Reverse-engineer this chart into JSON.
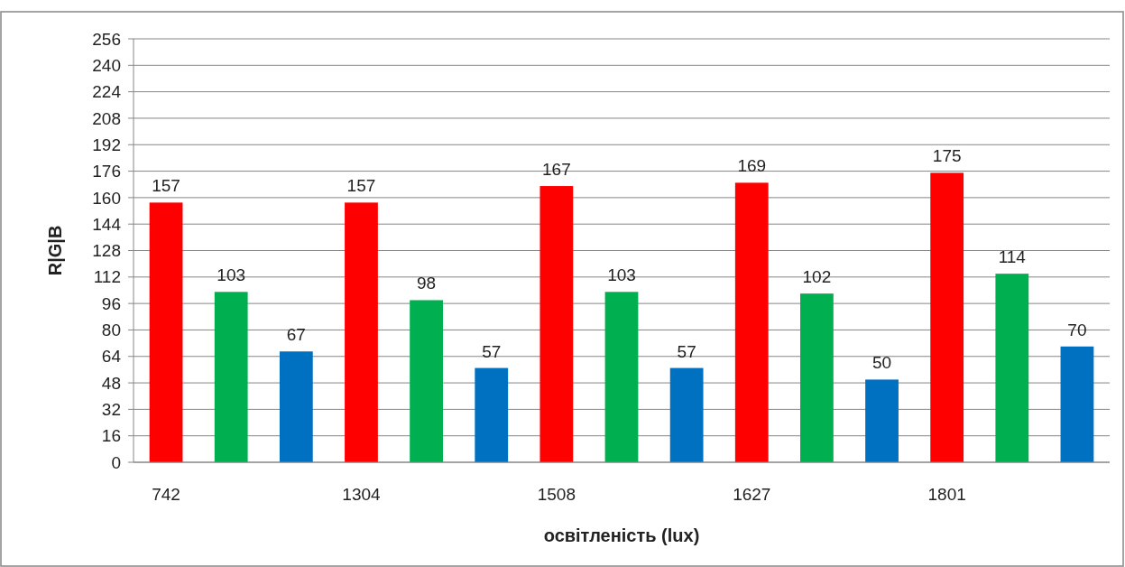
{
  "chart_data": {
    "type": "bar",
    "xlabel": "освітленість (lux)",
    "ylabel": "R|G|B",
    "categories": [
      "742",
      null,
      null,
      "1304",
      null,
      null,
      "1508",
      null,
      null,
      "1627",
      null,
      null,
      "1801",
      null,
      null
    ],
    "values": [
      157,
      103,
      67,
      157,
      98,
      57,
      167,
      103,
      57,
      169,
      102,
      50,
      175,
      114,
      70
    ],
    "colors": [
      "#ff0000",
      "#00b050",
      "#0070c0",
      "#ff0000",
      "#00b050",
      "#0070c0",
      "#ff0000",
      "#00b050",
      "#0070c0",
      "#ff0000",
      "#00b050",
      "#0070c0",
      "#ff0000",
      "#00b050",
      "#0070c0"
    ],
    "ylim": [
      0,
      256
    ],
    "yticks": [
      0,
      16,
      32,
      48,
      64,
      80,
      96,
      112,
      128,
      144,
      160,
      176,
      192,
      208,
      224,
      240,
      256
    ],
    "grid": "y",
    "data_labels": true
  }
}
